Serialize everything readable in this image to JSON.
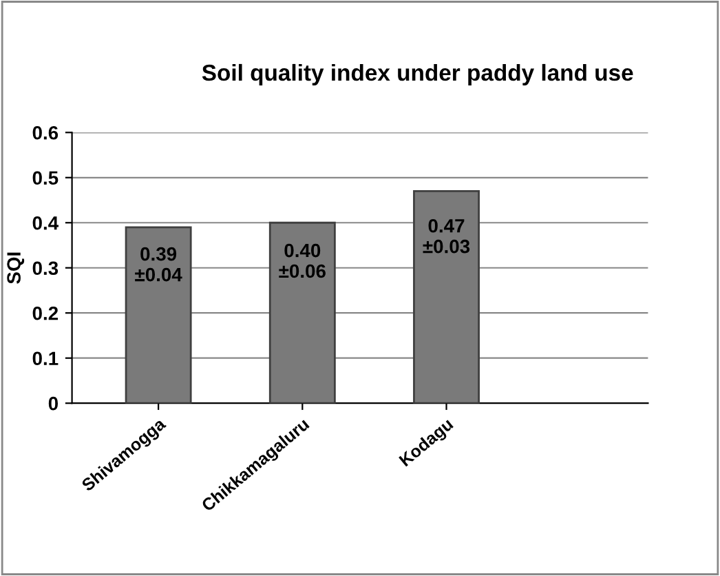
{
  "chart_data": {
    "type": "bar",
    "title": "Soil quality index under paddy land use",
    "ylabel": "SQI",
    "categories": [
      "Shivamogga",
      "Chikkamagaluru",
      "Kodagu"
    ],
    "values": [
      0.39,
      0.4,
      0.47
    ],
    "color": "#7a7a7a",
    "value_labels": [
      "0.39\n±0.04",
      "0.40\n±0.06",
      "0.47\n±0.03"
    ],
    "ylim": [
      0,
      0.6
    ],
    "yticks": [
      0,
      0.1,
      0.2,
      0.3,
      0.4,
      0.5,
      0.6
    ],
    "grid": "y",
    "legend": false
  }
}
